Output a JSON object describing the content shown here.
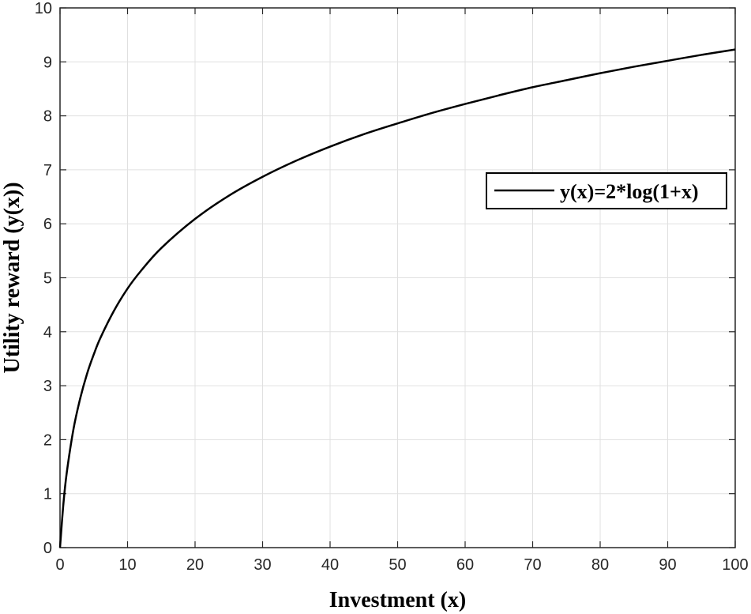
{
  "chart_data": {
    "type": "line",
    "title": "",
    "xlabel": "Investment (x)",
    "ylabel": "Utility reward (y(x))",
    "xlim": [
      0,
      100
    ],
    "ylim": [
      0,
      10
    ],
    "xticks": [
      "0",
      "10",
      "20",
      "30",
      "40",
      "50",
      "60",
      "70",
      "80",
      "90",
      "100"
    ],
    "yticks": [
      "0",
      "1",
      "2",
      "3",
      "4",
      "5",
      "6",
      "7",
      "8",
      "9",
      "10"
    ],
    "grid": true,
    "legend_position": "right",
    "series": [
      {
        "name": "y(x)=2*log(1+x)",
        "color": "#000000",
        "x": [
          0,
          0.5,
          1,
          2,
          3,
          4,
          5,
          6,
          8,
          10,
          12,
          15,
          20,
          25,
          30,
          35,
          40,
          45,
          50,
          55,
          60,
          65,
          70,
          75,
          80,
          85,
          90,
          95,
          100
        ],
        "y": [
          0,
          0.81,
          1.39,
          2.2,
          2.77,
          3.22,
          3.58,
          3.89,
          4.39,
          4.8,
          5.13,
          5.55,
          6.09,
          6.52,
          6.87,
          7.17,
          7.43,
          7.66,
          7.86,
          8.05,
          8.22,
          8.38,
          8.53,
          8.66,
          8.79,
          8.91,
          9.02,
          9.13,
          9.23
        ]
      }
    ]
  }
}
